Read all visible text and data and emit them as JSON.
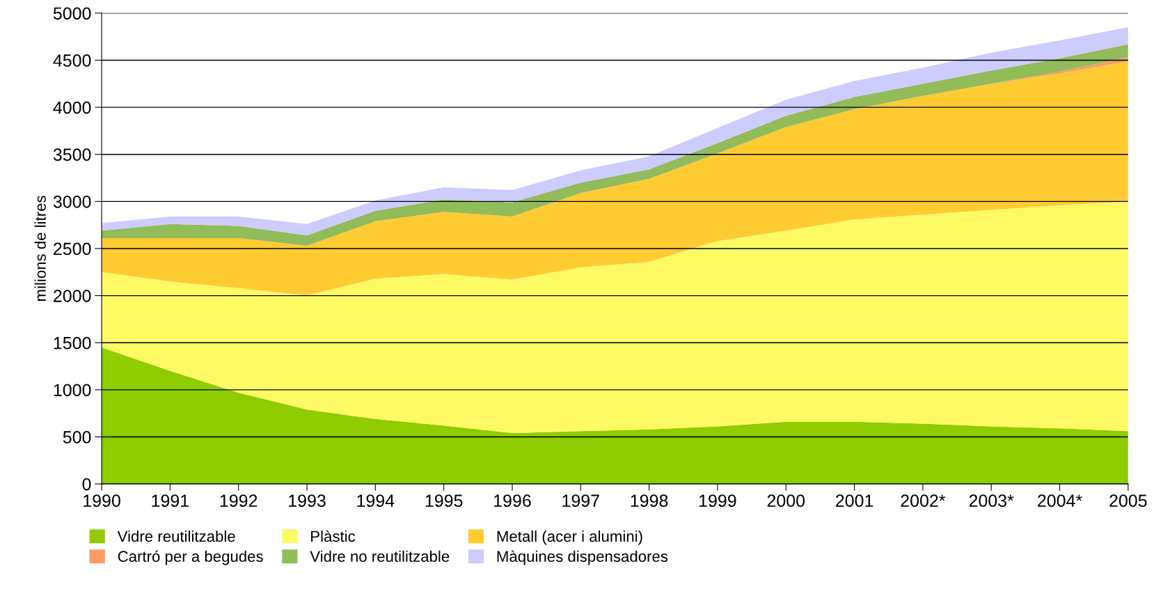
{
  "chart_data": {
    "type": "area",
    "stacked": true,
    "ylabel": "milions de litres",
    "categories": [
      "1990",
      "1991",
      "1992",
      "1993",
      "1994",
      "1995",
      "1996",
      "1997",
      "1998",
      "1999",
      "2000",
      "2001",
      "2002*",
      "2003*",
      "2004*",
      "2005"
    ],
    "ylim": [
      0,
      5000
    ],
    "yticks": [
      0,
      500,
      1000,
      1500,
      2000,
      2500,
      3000,
      3500,
      4000,
      4500,
      5000
    ],
    "grid": "y",
    "legend": "bottom",
    "series": [
      {
        "name": "Vidre reutilitzable",
        "color": "#8fcc00",
        "values": [
          1450,
          1200,
          970,
          790,
          690,
          620,
          540,
          560,
          580,
          610,
          660,
          660,
          640,
          610,
          590,
          560
        ]
      },
      {
        "name": "Plàstic",
        "color": "#fdfa64",
        "values": [
          800,
          950,
          1110,
          1210,
          1490,
          1610,
          1630,
          1740,
          1780,
          1970,
          2030,
          2150,
          2220,
          2300,
          2370,
          2440
        ]
      },
      {
        "name": "Metall (acer i alumini)",
        "color": "#fecb33",
        "values": [
          360,
          460,
          530,
          530,
          610,
          660,
          670,
          790,
          880,
          930,
          1100,
          1170,
          1260,
          1340,
          1400,
          1490
        ]
      },
      {
        "name": "Cartró per a begudes",
        "color": "#ff9966",
        "values": [
          0,
          0,
          0,
          0,
          0,
          0,
          0,
          0,
          0,
          0,
          0,
          0,
          0,
          0,
          20,
          40
        ]
      },
      {
        "name": "Vidre no reutilitzable",
        "color": "#92bb5a",
        "values": [
          80,
          150,
          130,
          110,
          110,
          130,
          150,
          110,
          100,
          110,
          120,
          130,
          130,
          140,
          140,
          140
        ]
      },
      {
        "name": "Màquines dispensadores",
        "color": "#ccccff",
        "values": [
          80,
          80,
          100,
          120,
          110,
          130,
          130,
          130,
          140,
          160,
          170,
          170,
          170,
          190,
          190,
          180
        ]
      }
    ]
  }
}
